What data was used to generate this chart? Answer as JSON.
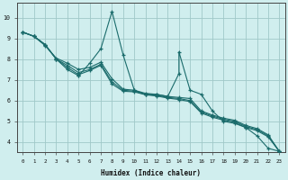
{
  "xlabel": "Humidex (Indice chaleur)",
  "xlim": [
    -0.5,
    23.5
  ],
  "ylim": [
    3.5,
    10.7
  ],
  "xticks": [
    0,
    1,
    2,
    3,
    4,
    5,
    6,
    7,
    8,
    9,
    10,
    11,
    12,
    13,
    14,
    15,
    16,
    17,
    18,
    19,
    20,
    21,
    22,
    23
  ],
  "yticks": [
    4,
    5,
    6,
    7,
    8,
    9,
    10
  ],
  "bg_color": "#d0eeee",
  "grid_color": "#a0c8c8",
  "line_color": "#1a6b6b",
  "lines": [
    {
      "x": [
        0,
        1,
        2,
        3,
        4,
        5,
        5,
        6,
        7,
        8,
        9,
        10,
        11,
        12,
        13,
        14,
        14,
        15,
        16,
        17,
        18,
        19,
        20,
        21,
        22,
        23
      ],
      "y": [
        9.3,
        9.1,
        8.7,
        8.0,
        7.5,
        7.2,
        7.2,
        7.8,
        8.5,
        10.3,
        8.2,
        6.5,
        6.3,
        6.3,
        6.2,
        7.3,
        8.35,
        6.5,
        6.3,
        5.5,
        5.0,
        4.9,
        4.7,
        4.3,
        3.7,
        3.55
      ]
    },
    {
      "x": [
        0,
        1,
        2,
        3,
        4,
        5,
        6,
        7,
        8,
        9,
        10,
        11,
        12,
        13,
        14,
        15,
        16,
        17,
        18,
        19,
        20,
        21,
        22,
        23
      ],
      "y": [
        9.3,
        9.1,
        8.65,
        8.05,
        7.8,
        7.5,
        7.6,
        7.85,
        7.05,
        6.55,
        6.5,
        6.35,
        6.3,
        6.2,
        6.15,
        6.1,
        5.5,
        5.3,
        5.15,
        5.05,
        4.8,
        4.65,
        4.35,
        3.55
      ]
    },
    {
      "x": [
        0,
        1,
        2,
        3,
        4,
        5,
        6,
        7,
        8,
        9,
        10,
        11,
        12,
        13,
        14,
        15,
        16,
        17,
        18,
        19,
        20,
        21,
        22,
        23
      ],
      "y": [
        9.3,
        9.1,
        8.7,
        8.0,
        7.7,
        7.35,
        7.5,
        7.75,
        6.9,
        6.5,
        6.45,
        6.3,
        6.25,
        6.15,
        6.1,
        6.0,
        5.45,
        5.25,
        5.1,
        5.0,
        4.75,
        4.6,
        4.3,
        3.55
      ]
    },
    {
      "x": [
        0,
        1,
        2,
        3,
        4,
        5,
        6,
        7,
        8,
        9,
        10,
        11,
        12,
        13,
        14,
        15,
        16,
        17,
        18,
        19,
        20,
        21,
        22,
        23
      ],
      "y": [
        9.3,
        9.1,
        8.7,
        8.0,
        7.6,
        7.25,
        7.45,
        7.7,
        6.8,
        6.45,
        6.42,
        6.28,
        6.22,
        6.12,
        6.05,
        5.95,
        5.4,
        5.2,
        5.05,
        4.95,
        4.7,
        4.55,
        4.25,
        3.55
      ]
    }
  ]
}
